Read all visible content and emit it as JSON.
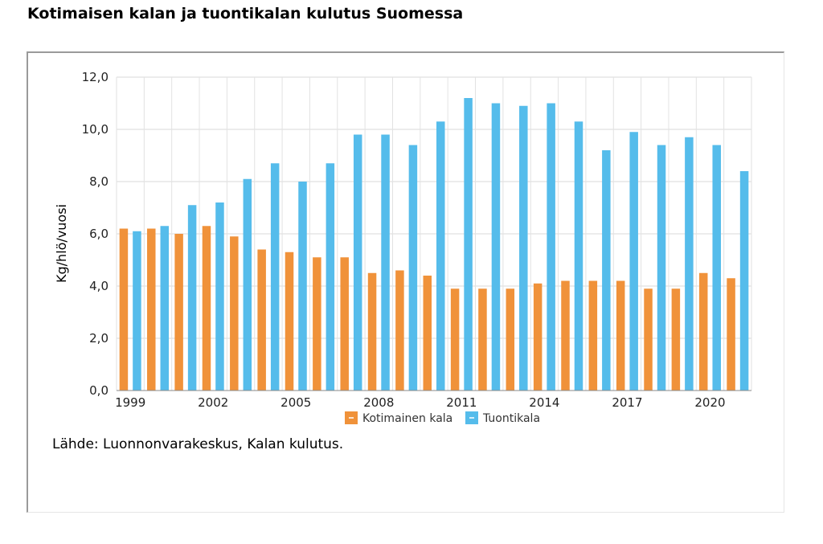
{
  "page": {
    "title": "Kotimaisen kalan ja tuontikalan kulutus Suomessa",
    "source": "Lähde: Luonnonvarakeskus, Kalan kulutus."
  },
  "chart_data": {
    "type": "bar",
    "title": "Kotimaisen kalan ja tuontikalan kulutus Suomessa",
    "xlabel": "",
    "ylabel": "Kg/hlö/vuosi",
    "ylim": [
      0,
      12
    ],
    "yticks": [
      "0,0",
      "2,0",
      "4,0",
      "6,0",
      "8,0",
      "10,0",
      "12,0"
    ],
    "categories": [
      "1999",
      "2000",
      "2001",
      "2002",
      "2003",
      "2004",
      "2005",
      "2006",
      "2007",
      "2008",
      "2009",
      "2010",
      "2011",
      "2012",
      "2013",
      "2014",
      "2015",
      "2016",
      "2017",
      "2018",
      "2019",
      "2020",
      "2021"
    ],
    "x_tick_labels": [
      "1999",
      "2002",
      "2005",
      "2008",
      "2011",
      "2014",
      "2017",
      "2020"
    ],
    "series": [
      {
        "name": "Kotimainen kala",
        "color": "#f0923a",
        "values": [
          6.2,
          6.2,
          6.0,
          6.3,
          5.9,
          5.4,
          5.3,
          5.1,
          5.1,
          4.5,
          4.6,
          4.4,
          3.9,
          3.9,
          3.9,
          4.1,
          4.2,
          4.2,
          4.2,
          3.9,
          3.9,
          4.5,
          4.3
        ]
      },
      {
        "name": "Tuontikala",
        "color": "#55bceb",
        "values": [
          6.1,
          6.3,
          7.1,
          7.2,
          8.1,
          8.7,
          8.0,
          8.7,
          9.8,
          9.8,
          9.4,
          10.3,
          11.2,
          11.0,
          10.9,
          11.0,
          10.3,
          9.2,
          9.9,
          9.4,
          9.7,
          9.4,
          8.4
        ]
      }
    ],
    "grid": true,
    "legend": "bottom-center"
  }
}
